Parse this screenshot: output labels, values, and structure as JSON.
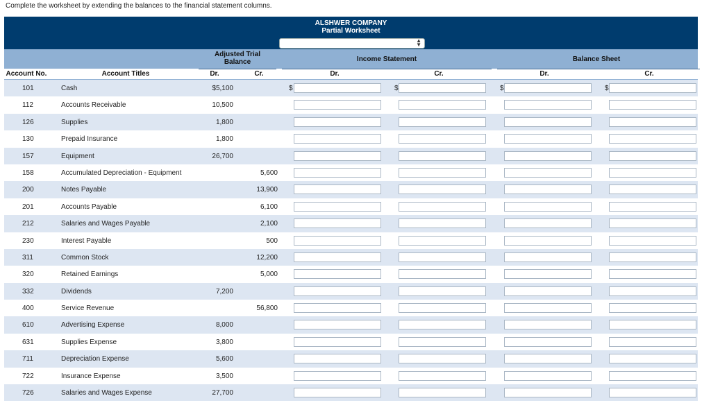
{
  "instruction": "Complete the worksheet by extending the balances to the financial statement columns.",
  "company": "ALSHWER COMPANY",
  "subtitle": "Partial Worksheet",
  "dropdown": {
    "selected": ""
  },
  "groups": {
    "trial": "Adjusted Trial\nBalance",
    "income": "Income Statement",
    "balance": "Balance Sheet"
  },
  "headers": {
    "acct_no": "Account No.",
    "acct_titles": "Account Titles",
    "dr": "Dr.",
    "cr": "Cr."
  },
  "dollar_sign": "$",
  "rows": [
    {
      "no": "101",
      "title": "Cash",
      "dr": "$5,100",
      "cr": ""
    },
    {
      "no": "112",
      "title": "Accounts Receivable",
      "dr": "10,500",
      "cr": ""
    },
    {
      "no": "126",
      "title": "Supplies",
      "dr": "1,800",
      "cr": ""
    },
    {
      "no": "130",
      "title": "Prepaid Insurance",
      "dr": "1,800",
      "cr": ""
    },
    {
      "no": "157",
      "title": "Equipment",
      "dr": "26,700",
      "cr": ""
    },
    {
      "no": "158",
      "title": "Accumulated Depreciation - Equipment",
      "dr": "",
      "cr": "5,600"
    },
    {
      "no": "200",
      "title": "Notes Payable",
      "dr": "",
      "cr": "13,900"
    },
    {
      "no": "201",
      "title": "Accounts Payable",
      "dr": "",
      "cr": "6,100"
    },
    {
      "no": "212",
      "title": "Salaries and Wages Payable",
      "dr": "",
      "cr": "2,100"
    },
    {
      "no": "230",
      "title": "Interest Payable",
      "dr": "",
      "cr": "500"
    },
    {
      "no": "311",
      "title": "Common Stock",
      "dr": "",
      "cr": "12,200"
    },
    {
      "no": "320",
      "title": "Retained Earnings",
      "dr": "",
      "cr": "5,000"
    },
    {
      "no": "332",
      "title": "Dividends",
      "dr": "7,200",
      "cr": ""
    },
    {
      "no": "400",
      "title": "Service Revenue",
      "dr": "",
      "cr": "56,800"
    },
    {
      "no": "610",
      "title": "Advertising Expense",
      "dr": "8,000",
      "cr": ""
    },
    {
      "no": "631",
      "title": "Supplies Expense",
      "dr": "3,800",
      "cr": ""
    },
    {
      "no": "711",
      "title": "Depreciation Expense",
      "dr": "5,600",
      "cr": ""
    },
    {
      "no": "722",
      "title": "Insurance Expense",
      "dr": "3,500",
      "cr": ""
    },
    {
      "no": "726",
      "title": "Salaries and Wages Expense",
      "dr": "27,700",
      "cr": ""
    }
  ]
}
